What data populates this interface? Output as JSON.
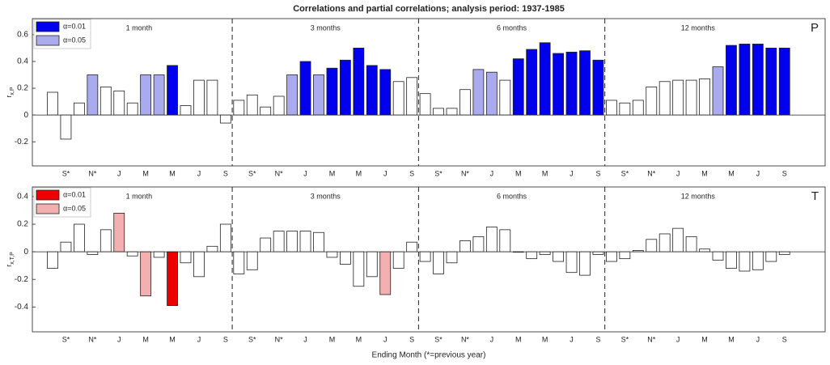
{
  "chart_data": [
    {
      "type": "bar",
      "title": "Correlations and partial correlations; analysis period: 1937-1985",
      "panel_label": "P",
      "group_labels": [
        "1 month",
        "3 months",
        "6 months",
        "12 months"
      ],
      "categories": [
        null,
        "S*",
        null,
        "N*",
        null,
        "J",
        null,
        "M",
        null,
        "M",
        null,
        "J",
        null,
        "S",
        null,
        "S*",
        null,
        "N*",
        null,
        "J",
        null,
        "M",
        null,
        "M",
        null,
        "J",
        null,
        "S",
        null,
        "S*",
        null,
        "N*",
        null,
        "J",
        null,
        "M",
        null,
        "M",
        null,
        "J",
        null,
        "S",
        null,
        "S*",
        null,
        "N*",
        null,
        "J",
        null,
        "M",
        null,
        "M",
        null,
        "J",
        null,
        "S"
      ],
      "values": [
        0.17,
        -0.18,
        0.09,
        0.3,
        0.21,
        0.18,
        0.09,
        0.3,
        0.3,
        0.37,
        0.07,
        0.26,
        0.26,
        -0.06,
        0.11,
        0.15,
        0.06,
        0.14,
        0.3,
        0.4,
        0.3,
        0.35,
        0.41,
        0.5,
        0.37,
        0.34,
        0.25,
        0.28,
        0.16,
        0.05,
        0.05,
        0.19,
        0.34,
        0.32,
        0.26,
        0.42,
        0.49,
        0.54,
        0.46,
        0.47,
        0.48,
        0.41,
        0.11,
        0.09,
        0.11,
        0.21,
        0.25,
        0.26,
        0.26,
        0.27,
        0.36,
        0.52,
        0.53,
        0.53,
        0.5,
        0.5
      ],
      "colors": [
        "#ffffff",
        "#ffffff",
        "#ffffff",
        "#aaaaee",
        "#ffffff",
        "#ffffff",
        "#ffffff",
        "#aaaaee",
        "#aaaaee",
        "#0000ee",
        "#ffffff",
        "#ffffff",
        "#ffffff",
        "#ffffff",
        "#ffffff",
        "#ffffff",
        "#ffffff",
        "#ffffff",
        "#aaaaee",
        "#0000ee",
        "#aaaaee",
        "#0000ee",
        "#0000ee",
        "#0000ee",
        "#0000ee",
        "#0000ee",
        "#ffffff",
        "#ffffff",
        "#ffffff",
        "#ffffff",
        "#ffffff",
        "#ffffff",
        "#aaaaee",
        "#aaaaee",
        "#ffffff",
        "#0000ee",
        "#0000ee",
        "#0000ee",
        "#0000ee",
        "#0000ee",
        "#0000ee",
        "#0000ee",
        "#ffffff",
        "#ffffff",
        "#ffffff",
        "#ffffff",
        "#ffffff",
        "#ffffff",
        "#ffffff",
        "#ffffff",
        "#aaaaee",
        "#0000ee",
        "#0000ee",
        "#0000ee",
        "#0000ee",
        "#0000ee"
      ],
      "legend": [
        {
          "name": "α=0.01",
          "color": "#0000ee"
        },
        {
          "name": "α=0.05",
          "color": "#aaaaee"
        }
      ],
      "ylabel": "r",
      "ylabel_sub": "x,P",
      "ylim": [
        -0.38,
        0.72
      ],
      "yticks": [
        -0.2,
        0,
        0.2,
        0.4,
        0.6
      ]
    },
    {
      "type": "bar",
      "xlabel": "Ending Month (*=previous year)",
      "panel_label": "T",
      "group_labels": [
        "1 month",
        "3 months",
        "6 months",
        "12 months"
      ],
      "categories": [
        null,
        "S*",
        null,
        "N*",
        null,
        "J",
        null,
        "M",
        null,
        "M",
        null,
        "J",
        null,
        "S",
        null,
        "S*",
        null,
        "N*",
        null,
        "J",
        null,
        "M",
        null,
        "M",
        null,
        "J",
        null,
        "S",
        null,
        "S*",
        null,
        "N*",
        null,
        "J",
        null,
        "M",
        null,
        "M",
        null,
        "J",
        null,
        "S",
        null,
        "S*",
        null,
        "N*",
        null,
        "J",
        null,
        "M",
        null,
        "M",
        null,
        "J",
        null,
        "S"
      ],
      "values": [
        -0.12,
        0.07,
        0.2,
        -0.02,
        0.16,
        0.28,
        -0.03,
        -0.32,
        -0.04,
        -0.39,
        -0.08,
        -0.18,
        0.04,
        0.2,
        -0.16,
        -0.13,
        0.1,
        0.15,
        0.15,
        0.15,
        0.14,
        -0.04,
        -0.09,
        -0.25,
        -0.18,
        -0.31,
        -0.12,
        0.07,
        -0.07,
        -0.16,
        -0.08,
        0.08,
        0.11,
        0.18,
        0.16,
        0.0,
        -0.05,
        -0.02,
        -0.07,
        -0.15,
        -0.17,
        -0.02,
        -0.07,
        -0.05,
        0.01,
        0.09,
        0.13,
        0.17,
        0.11,
        0.02,
        -0.06,
        -0.12,
        -0.14,
        -0.13,
        -0.07,
        -0.02
      ],
      "colors": [
        "#ffffff",
        "#ffffff",
        "#ffffff",
        "#ffffff",
        "#ffffff",
        "#f4b0b0",
        "#ffffff",
        "#f4b0b0",
        "#ffffff",
        "#ee0000",
        "#ffffff",
        "#ffffff",
        "#ffffff",
        "#ffffff",
        "#ffffff",
        "#ffffff",
        "#ffffff",
        "#ffffff",
        "#ffffff",
        "#ffffff",
        "#ffffff",
        "#ffffff",
        "#ffffff",
        "#ffffff",
        "#ffffff",
        "#f4b0b0",
        "#ffffff",
        "#ffffff",
        "#ffffff",
        "#ffffff",
        "#ffffff",
        "#ffffff",
        "#ffffff",
        "#ffffff",
        "#ffffff",
        "#ffffff",
        "#ffffff",
        "#ffffff",
        "#ffffff",
        "#ffffff",
        "#ffffff",
        "#ffffff",
        "#ffffff",
        "#ffffff",
        "#ffffff",
        "#ffffff",
        "#ffffff",
        "#ffffff",
        "#ffffff",
        "#ffffff",
        "#ffffff",
        "#ffffff",
        "#ffffff",
        "#ffffff",
        "#ffffff",
        "#ffffff"
      ],
      "legend": [
        {
          "name": "α=0.01",
          "color": "#ee0000"
        },
        {
          "name": "α=0.05",
          "color": "#f4b0b0"
        }
      ],
      "ylabel": "r",
      "ylabel_sub": "x,T,P",
      "ylim": [
        -0.58,
        0.47
      ],
      "yticks": [
        -0.4,
        -0.2,
        0,
        0.2,
        0.4
      ]
    }
  ]
}
